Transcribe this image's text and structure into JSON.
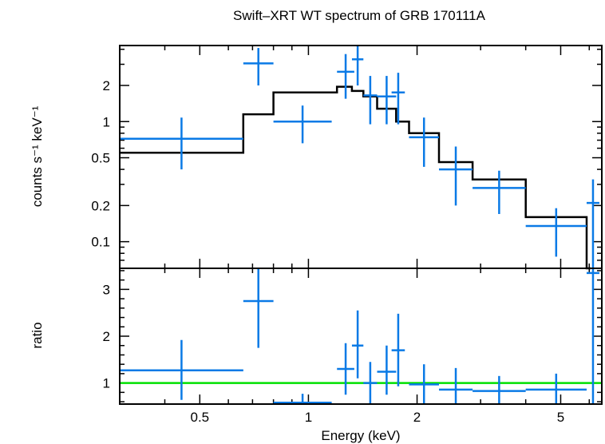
{
  "chart_data": {
    "type": "scatter",
    "title": "Swift–XRT WT spectrum of GRB 170111A",
    "xlabel": "Energy (keV)",
    "x_scale": "log",
    "xlim": [
      0.3,
      6.5
    ],
    "x_ticks": [
      {
        "value": 0.5,
        "label": "0.5"
      },
      {
        "value": 1,
        "label": "1"
      },
      {
        "value": 2,
        "label": "2"
      },
      {
        "value": 5,
        "label": "5"
      }
    ],
    "colors": {
      "data": "#0a7ae6",
      "model": "#000000",
      "unity": "#00e000"
    },
    "panels": {
      "spectrum": {
        "ylabel": "counts s⁻¹ keV⁻¹",
        "y_scale": "log",
        "ylim": [
          0.06,
          4.3
        ],
        "y_ticks": [
          {
            "value": 0.1,
            "label": "0.1"
          },
          {
            "value": 0.2,
            "label": "0.2"
          },
          {
            "value": 0.5,
            "label": "0.5"
          },
          {
            "value": 1,
            "label": "1"
          },
          {
            "value": 2,
            "label": "2"
          }
        ],
        "data": [
          {
            "x_lo": 0.3,
            "x_hi": 0.66,
            "y": 0.72,
            "y_lo": 0.4,
            "y_hi": 1.08
          },
          {
            "x_lo": 0.66,
            "x_hi": 0.8,
            "y": 3.05,
            "y_lo": 2.0,
            "y_hi": 4.1
          },
          {
            "x_lo": 0.8,
            "x_hi": 1.16,
            "y": 1.0,
            "y_lo": 0.66,
            "y_hi": 1.36
          },
          {
            "x_lo": 1.2,
            "x_hi": 1.34,
            "y": 2.6,
            "y_lo": 1.55,
            "y_hi": 3.65
          },
          {
            "x_lo": 1.32,
            "x_hi": 1.42,
            "y": 3.3,
            "y_lo": 2.0,
            "y_hi": 4.4
          },
          {
            "x_lo": 1.42,
            "x_hi": 1.55,
            "y": 1.65,
            "y_lo": 0.95,
            "y_hi": 2.4
          },
          {
            "x_lo": 1.55,
            "x_hi": 1.75,
            "y": 1.62,
            "y_lo": 0.95,
            "y_hi": 2.4
          },
          {
            "x_lo": 1.7,
            "x_hi": 1.85,
            "y": 1.75,
            "y_lo": 0.95,
            "y_hi": 2.55
          },
          {
            "x_lo": 1.9,
            "x_hi": 2.3,
            "y": 0.74,
            "y_lo": 0.42,
            "y_hi": 1.08
          },
          {
            "x_lo": 2.3,
            "x_hi": 2.85,
            "y": 0.4,
            "y_lo": 0.2,
            "y_hi": 0.62
          },
          {
            "x_lo": 2.85,
            "x_hi": 4.0,
            "y": 0.28,
            "y_lo": 0.17,
            "y_hi": 0.39
          },
          {
            "x_lo": 4.0,
            "x_hi": 5.9,
            "y": 0.135,
            "y_lo": 0.075,
            "y_hi": 0.19
          },
          {
            "x_lo": 5.9,
            "x_hi": 6.4,
            "y": 0.21,
            "y_lo": 0.055,
            "y_hi": 0.33
          }
        ],
        "model_step": [
          {
            "x_lo": 0.3,
            "x_hi": 0.66,
            "y": 0.55
          },
          {
            "x_lo": 0.66,
            "x_hi": 0.8,
            "y": 1.15
          },
          {
            "x_lo": 0.8,
            "x_hi": 1.2,
            "y": 1.75
          },
          {
            "x_lo": 1.2,
            "x_hi": 1.32,
            "y": 1.95
          },
          {
            "x_lo": 1.32,
            "x_hi": 1.42,
            "y": 1.8
          },
          {
            "x_lo": 1.42,
            "x_hi": 1.55,
            "y": 1.62
          },
          {
            "x_lo": 1.55,
            "x_hi": 1.75,
            "y": 1.28
          },
          {
            "x_lo": 1.75,
            "x_hi": 1.9,
            "y": 1.0
          },
          {
            "x_lo": 1.9,
            "x_hi": 2.3,
            "y": 0.8
          },
          {
            "x_lo": 2.3,
            "x_hi": 2.85,
            "y": 0.46
          },
          {
            "x_lo": 2.85,
            "x_hi": 4.0,
            "y": 0.33
          },
          {
            "x_lo": 4.0,
            "x_hi": 5.9,
            "y": 0.16
          },
          {
            "x_lo": 5.9,
            "x_hi": 6.4,
            "y": 0.055
          }
        ]
      },
      "ratio": {
        "ylabel": "ratio",
        "y_scale": "linear",
        "ylim": [
          0.55,
          3.45
        ],
        "y_ticks": [
          {
            "value": 1,
            "label": "1"
          },
          {
            "value": 2,
            "label": "2"
          },
          {
            "value": 3,
            "label": "3"
          }
        ],
        "unity_line": 1,
        "data": [
          {
            "x_lo": 0.3,
            "x_hi": 0.66,
            "y": 1.27,
            "y_lo": 0.64,
            "y_hi": 1.92
          },
          {
            "x_lo": 0.66,
            "x_hi": 0.8,
            "y": 2.75,
            "y_lo": 1.75,
            "y_hi": 3.45
          },
          {
            "x_lo": 0.8,
            "x_hi": 1.16,
            "y": 0.58,
            "y_lo": 0.5,
            "y_hi": 0.77
          },
          {
            "x_lo": 1.2,
            "x_hi": 1.34,
            "y": 1.3,
            "y_lo": 0.75,
            "y_hi": 1.85
          },
          {
            "x_lo": 1.32,
            "x_hi": 1.42,
            "y": 1.8,
            "y_lo": 1.1,
            "y_hi": 2.55
          },
          {
            "x_lo": 1.42,
            "x_hi": 1.55,
            "y": 1.0,
            "y_lo": 0.5,
            "y_hi": 1.45
          },
          {
            "x_lo": 1.55,
            "x_hi": 1.75,
            "y": 1.24,
            "y_lo": 0.75,
            "y_hi": 1.8
          },
          {
            "x_lo": 1.7,
            "x_hi": 1.85,
            "y": 1.7,
            "y_lo": 0.93,
            "y_hi": 2.48
          },
          {
            "x_lo": 1.9,
            "x_hi": 2.3,
            "y": 0.97,
            "y_lo": 0.5,
            "y_hi": 1.4
          },
          {
            "x_lo": 2.3,
            "x_hi": 2.85,
            "y": 0.86,
            "y_lo": 0.5,
            "y_hi": 1.32
          },
          {
            "x_lo": 2.85,
            "x_hi": 4.0,
            "y": 0.83,
            "y_lo": 0.5,
            "y_hi": 1.15
          },
          {
            "x_lo": 4.0,
            "x_hi": 5.9,
            "y": 0.86,
            "y_lo": 0.5,
            "y_hi": 1.2
          },
          {
            "x_lo": 5.9,
            "x_hi": 6.4,
            "y": 3.35,
            "y_lo": 0.5,
            "y_hi": 3.45
          }
        ]
      }
    }
  }
}
